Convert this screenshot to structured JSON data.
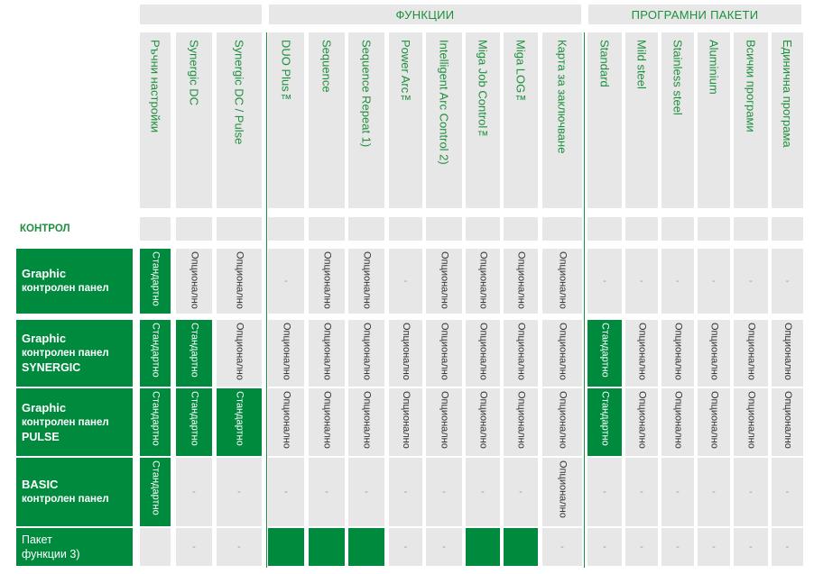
{
  "sections": {
    "functions": "ФУНКЦИИ",
    "packages": "ПРОГРАМНИ ПАКЕТИ"
  },
  "columns": [
    "Ръчни настройки",
    "Synergic DC",
    "Synergic DC / Pulse",
    "DUO Plus™",
    "Sequence",
    "Sequence Repeat 1)",
    "Power Arc™",
    "Intelligent Arc Control 2)",
    "Miga Job Control™",
    "Miga LOG™",
    "Карта за заключване",
    "Standard",
    "Mild steel",
    "Stainless steel",
    "Aluminium",
    "Всички програми",
    "Единична програма"
  ],
  "control_label": "КОНТРОЛ",
  "values": {
    "standard": "Стандартно",
    "optional": "Опционално",
    "none": "-"
  },
  "rows": [
    {
      "line1": "Graphic",
      "line2": "контролен панел",
      "line3": ""
    },
    {
      "line1": "Graphic",
      "line2": "контролен панел",
      "line3": "SYNERGIC"
    },
    {
      "line1": "Graphic",
      "line2": "контролен панел",
      "line3": "PULSE"
    },
    {
      "line1": "BASIC",
      "line2": "контролен панел",
      "line3": ""
    },
    {
      "line1": "Пакет",
      "line2": "функции 3)",
      "line3": ""
    }
  ],
  "matrix": [
    [
      "S",
      "O",
      "O",
      "-",
      "O",
      "O",
      "-",
      "O",
      "O",
      "O",
      "O",
      "-",
      "-",
      "-",
      "-",
      "-",
      "-"
    ],
    [
      "S",
      "S",
      "O",
      "O",
      "O",
      "O",
      "O",
      "O",
      "O",
      "O",
      "O",
      "S",
      "O",
      "O",
      "O",
      "O",
      "O"
    ],
    [
      "S",
      "S",
      "S",
      "O",
      "O",
      "O",
      "O",
      "O",
      "O",
      "O",
      "O",
      "S",
      "O",
      "O",
      "O",
      "O",
      "O"
    ],
    [
      "S",
      "-",
      "-",
      "-",
      "-",
      "-",
      "-",
      "-",
      "-",
      "-",
      "O",
      "-",
      "-",
      "-",
      "-",
      "-",
      "-"
    ],
    [
      "",
      "-",
      "-",
      "G",
      "G",
      "G",
      "-",
      "-",
      "G",
      "G",
      "-",
      "-",
      "-",
      "-",
      "-",
      "-",
      "-"
    ]
  ],
  "colors": {
    "green": "#008a3e",
    "header_text": "#1f8f3e",
    "cell_bg": "#e7e7e7"
  }
}
